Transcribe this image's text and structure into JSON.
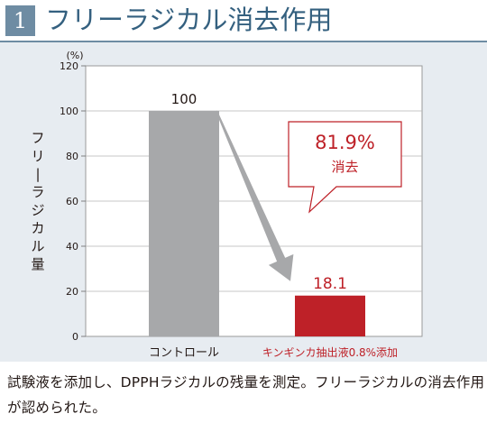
{
  "header": {
    "number": "1",
    "title": "フリーラジカル消去作用"
  },
  "chart_data": {
    "type": "bar",
    "categories": [
      "コントロール",
      "キンギンカ抽出液0.8%添加"
    ],
    "values": [
      100,
      18.1
    ],
    "value_labels": [
      "100",
      "18.1"
    ],
    "ylabel": "フリーラジカル量",
    "y_unit": "(%)",
    "ylim": [
      0,
      120
    ],
    "yticks": [
      0,
      20,
      40,
      60,
      80,
      100,
      120
    ],
    "grid": true,
    "bar_colors": [
      "#a7a8aa",
      "#be2128"
    ],
    "category_label_colors": [
      "#231815",
      "#be2128"
    ],
    "annotation": {
      "value": "81.9%",
      "label": "消去",
      "color": "#be2128"
    }
  },
  "caption": "試験液を添加し、DPPHラジカルの残量を測定。フリーラジカルの消去作用が認められた。",
  "colors": {
    "accent": "#6e8ca3",
    "title": "#34607f",
    "panel_bg": "#e7ecf1",
    "plot_bg": "#ffffff",
    "arrow": "#a7a8aa"
  }
}
